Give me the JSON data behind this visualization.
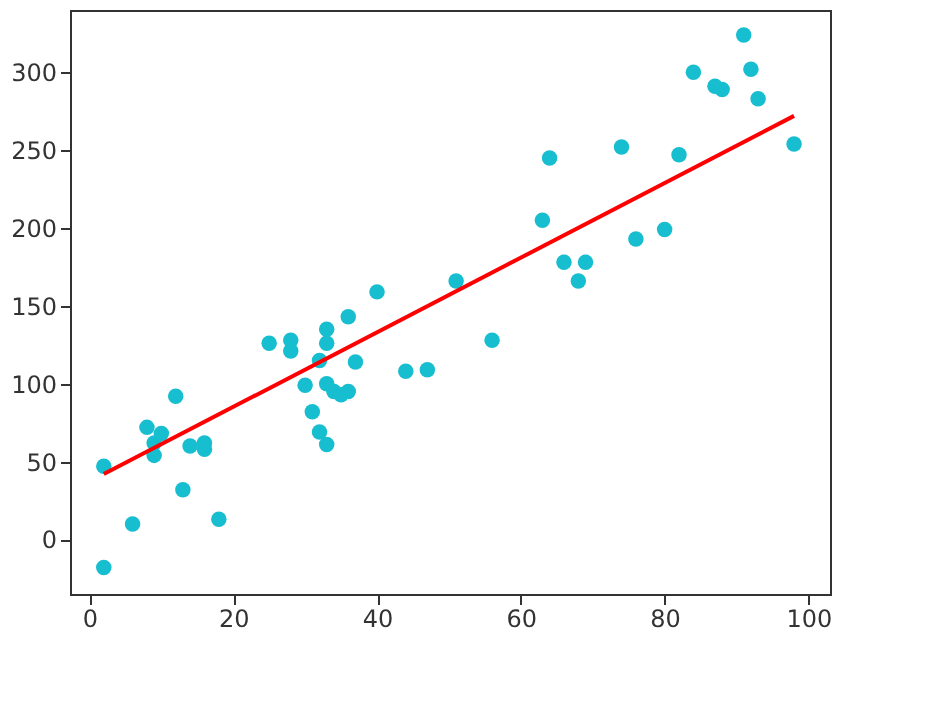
{
  "chart_data": {
    "type": "scatter",
    "xlim": [
      -2.7,
      103
    ],
    "ylim": [
      -35,
      340
    ],
    "xticks": [
      0,
      20,
      40,
      60,
      80,
      100
    ],
    "yticks": [
      0,
      50,
      100,
      150,
      200,
      250,
      300
    ],
    "grid": false,
    "series": [
      {
        "color": "#17becf",
        "marker": "circle",
        "x": [
          2,
          2,
          6,
          8,
          9,
          9,
          10,
          12,
          13,
          14,
          16,
          16,
          18,
          25,
          28,
          28,
          30,
          31,
          32,
          32,
          33,
          33,
          33,
          33,
          34,
          35,
          36,
          36,
          37,
          40,
          44,
          47,
          51,
          56,
          63,
          64,
          66,
          68,
          69,
          74,
          76,
          80,
          82,
          84,
          87,
          88,
          91,
          92,
          93,
          98
        ],
        "values": [
          -18,
          47,
          10,
          72,
          62,
          54,
          68,
          92,
          32,
          60,
          62,
          58,
          13,
          126,
          128,
          121,
          99,
          82,
          115,
          69,
          61,
          100,
          126,
          135,
          95,
          93,
          95,
          143,
          114,
          159,
          108,
          109,
          166,
          128,
          205,
          245,
          178,
          166,
          178,
          252,
          193,
          199,
          247,
          300,
          291,
          289,
          324,
          302,
          283,
          254
        ]
      },
      {
        "type": "line",
        "color": "#ff0000",
        "x": [
          2,
          98
        ],
        "values": [
          42,
          272
        ],
        "line_style": "solid",
        "marker": "none"
      }
    ]
  }
}
